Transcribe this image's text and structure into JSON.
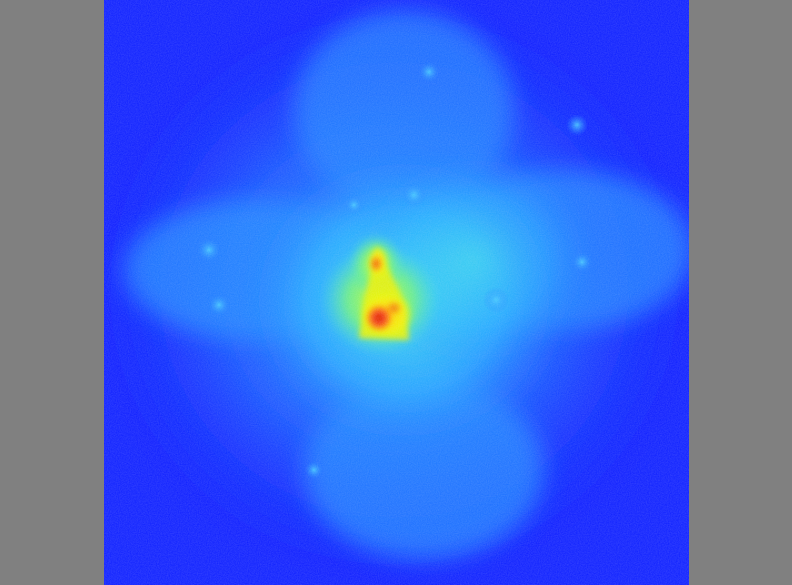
{
  "colors": {
    "background_gray": "#808080",
    "colormap": "jet",
    "low": "#0a1cff",
    "mid_low": "#1a7cff",
    "mid": "#2fd8f0",
    "mid_high": "#9aff3a",
    "high_yellow": "#ffe600",
    "peak_red": "#e01010"
  }
}
